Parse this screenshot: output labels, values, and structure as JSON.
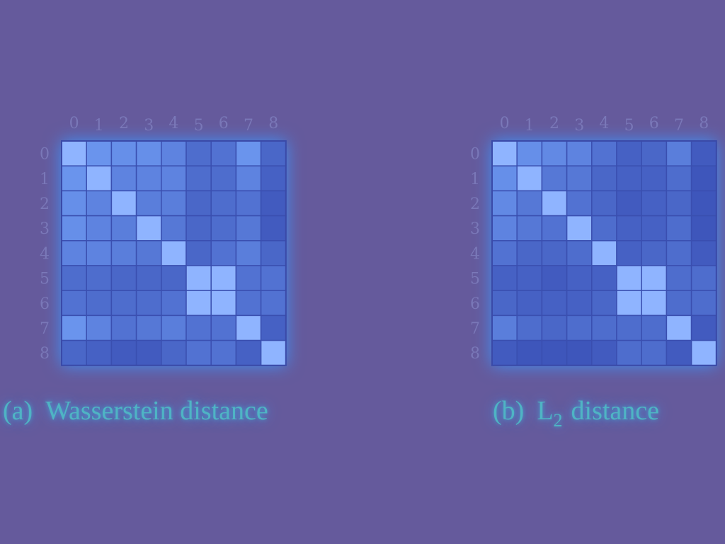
{
  "colors": {
    "background": "#655A9C",
    "cell_low": "#2E3FA8",
    "cell_high": "#6E9AF2",
    "diagonal": "#8FB4FF",
    "grid_line": "#3A4FB0",
    "caption": "#4FB4C4"
  },
  "chart_data": [
    {
      "type": "heatmap",
      "caption_label": "(a)",
      "caption_text": "Wasserstein distance",
      "x_tick_labels": [
        "0",
        "1",
        "2",
        "3",
        "4",
        "5",
        "6",
        "7",
        "8"
      ],
      "y_tick_labels": [
        "0",
        "1",
        "2",
        "3",
        "4",
        "5",
        "6",
        "7",
        "8"
      ],
      "matrix": [
        [
          1.0,
          0.75,
          0.7,
          0.7,
          0.6,
          0.4,
          0.45,
          0.75,
          0.35
        ],
        [
          0.75,
          1.0,
          0.6,
          0.6,
          0.6,
          0.4,
          0.4,
          0.6,
          0.3
        ],
        [
          0.7,
          0.6,
          1.0,
          0.55,
          0.55,
          0.35,
          0.4,
          0.45,
          0.25
        ],
        [
          0.7,
          0.6,
          0.55,
          1.0,
          0.5,
          0.35,
          0.4,
          0.5,
          0.25
        ],
        [
          0.6,
          0.6,
          0.55,
          0.5,
          1.0,
          0.35,
          0.45,
          0.55,
          0.35
        ],
        [
          0.4,
          0.4,
          0.35,
          0.35,
          0.35,
          1.0,
          1.0,
          0.45,
          0.45
        ],
        [
          0.45,
          0.4,
          0.4,
          0.4,
          0.45,
          1.0,
          1.0,
          0.45,
          0.45
        ],
        [
          0.75,
          0.6,
          0.45,
          0.5,
          0.55,
          0.45,
          0.45,
          1.0,
          0.3
        ],
        [
          0.35,
          0.3,
          0.25,
          0.25,
          0.35,
          0.45,
          0.45,
          0.3,
          1.0
        ]
      ]
    },
    {
      "type": "heatmap",
      "caption_label": "(b)",
      "caption_text_main": "L",
      "caption_text_sub": "2",
      "caption_text_rest": "distance",
      "x_tick_labels": [
        "0",
        "1",
        "2",
        "3",
        "4",
        "5",
        "6",
        "7",
        "8"
      ],
      "y_tick_labels": [
        "0",
        "1",
        "2",
        "3",
        "4",
        "5",
        "6",
        "7",
        "8"
      ],
      "matrix": [
        [
          1.0,
          0.7,
          0.65,
          0.6,
          0.45,
          0.3,
          0.35,
          0.55,
          0.25
        ],
        [
          0.7,
          1.0,
          0.5,
          0.5,
          0.35,
          0.3,
          0.3,
          0.4,
          0.2
        ],
        [
          0.65,
          0.5,
          1.0,
          0.45,
          0.35,
          0.25,
          0.3,
          0.35,
          0.2
        ],
        [
          0.6,
          0.5,
          0.45,
          1.0,
          0.4,
          0.3,
          0.3,
          0.4,
          0.2
        ],
        [
          0.45,
          0.35,
          0.35,
          0.4,
          1.0,
          0.3,
          0.35,
          0.4,
          0.25
        ],
        [
          0.3,
          0.3,
          0.25,
          0.3,
          0.3,
          1.0,
          1.0,
          0.4,
          0.4
        ],
        [
          0.35,
          0.3,
          0.3,
          0.3,
          0.35,
          1.0,
          1.0,
          0.4,
          0.4
        ],
        [
          0.55,
          0.4,
          0.35,
          0.4,
          0.4,
          0.4,
          0.4,
          1.0,
          0.25
        ],
        [
          0.25,
          0.2,
          0.2,
          0.2,
          0.25,
          0.4,
          0.4,
          0.25,
          1.0
        ]
      ]
    }
  ]
}
